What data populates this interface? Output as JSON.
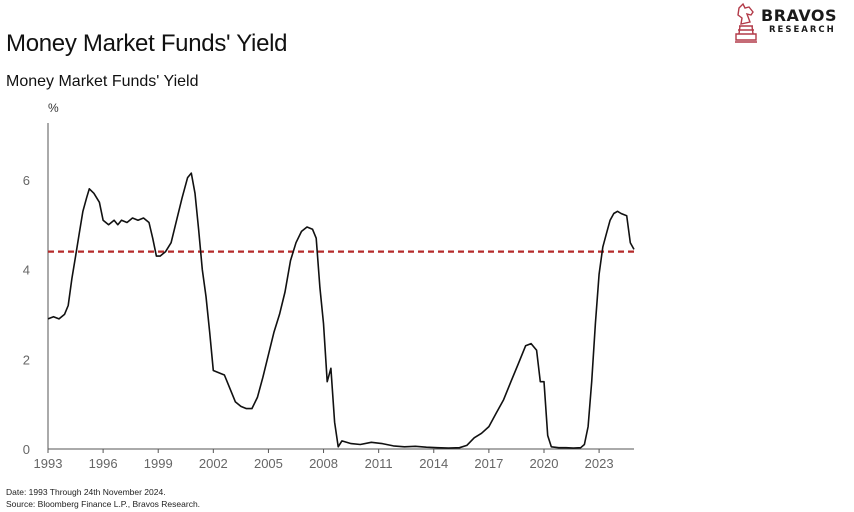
{
  "title": "Money Market Funds' Yield",
  "logo": {
    "name": "BRAVOS",
    "sub": "RESEARCH",
    "icon": "knight-chess-icon",
    "color": "#b23a48"
  },
  "footnotes": [
    "Date: 1993 Through 24th November 2024.",
    "Source: Bloomberg Finance L.P., Bravos Research."
  ],
  "colors": {
    "line": "#111111",
    "reference": "#b52a2a",
    "axis": "#555555",
    "tick_label": "#666666"
  },
  "chart_data": {
    "type": "line",
    "title": "Money Market Funds' Yield",
    "ylabel": "%",
    "xlabel": "",
    "xlim": [
      1993,
      2024.9
    ],
    "ylim": [
      0,
      7
    ],
    "xticks": [
      1993,
      1996,
      1999,
      2002,
      2005,
      2008,
      2011,
      2014,
      2017,
      2020,
      2023
    ],
    "yticks": [
      0,
      2,
      4,
      6
    ],
    "grid": false,
    "reference_line": {
      "y": 4.4,
      "style": "dashed"
    },
    "series": [
      {
        "points": [
          [
            1993.0,
            2.9
          ],
          [
            1993.3,
            2.95
          ],
          [
            1993.6,
            2.9
          ],
          [
            1993.9,
            3.0
          ],
          [
            1994.1,
            3.2
          ],
          [
            1994.3,
            3.8
          ],
          [
            1994.5,
            4.3
          ],
          [
            1994.7,
            4.8
          ],
          [
            1994.9,
            5.3
          ],
          [
            1995.1,
            5.6
          ],
          [
            1995.25,
            5.8
          ],
          [
            1995.5,
            5.7
          ],
          [
            1995.8,
            5.5
          ],
          [
            1996.0,
            5.1
          ],
          [
            1996.3,
            5.0
          ],
          [
            1996.6,
            5.1
          ],
          [
            1996.8,
            5.0
          ],
          [
            1997.0,
            5.1
          ],
          [
            1997.3,
            5.05
          ],
          [
            1997.6,
            5.15
          ],
          [
            1997.9,
            5.1
          ],
          [
            1998.2,
            5.15
          ],
          [
            1998.5,
            5.05
          ],
          [
            1998.7,
            4.7
          ],
          [
            1998.9,
            4.3
          ],
          [
            1999.1,
            4.3
          ],
          [
            1999.4,
            4.4
          ],
          [
            1999.7,
            4.6
          ],
          [
            2000.0,
            5.1
          ],
          [
            2000.3,
            5.6
          ],
          [
            2000.6,
            6.05
          ],
          [
            2000.8,
            6.15
          ],
          [
            2001.0,
            5.7
          ],
          [
            2001.2,
            4.9
          ],
          [
            2001.4,
            4.0
          ],
          [
            2001.6,
            3.4
          ],
          [
            2001.8,
            2.6
          ],
          [
            2002.0,
            1.75
          ],
          [
            2002.3,
            1.7
          ],
          [
            2002.6,
            1.65
          ],
          [
            2002.9,
            1.35
          ],
          [
            2003.2,
            1.05
          ],
          [
            2003.5,
            0.95
          ],
          [
            2003.8,
            0.9
          ],
          [
            2004.1,
            0.9
          ],
          [
            2004.4,
            1.15
          ],
          [
            2004.7,
            1.6
          ],
          [
            2005.0,
            2.1
          ],
          [
            2005.3,
            2.6
          ],
          [
            2005.6,
            3.0
          ],
          [
            2005.9,
            3.5
          ],
          [
            2006.2,
            4.2
          ],
          [
            2006.5,
            4.6
          ],
          [
            2006.8,
            4.85
          ],
          [
            2007.1,
            4.95
          ],
          [
            2007.4,
            4.9
          ],
          [
            2007.6,
            4.7
          ],
          [
            2007.8,
            3.6
          ],
          [
            2008.0,
            2.8
          ],
          [
            2008.2,
            1.5
          ],
          [
            2008.4,
            1.8
          ],
          [
            2008.6,
            0.6
          ],
          [
            2008.8,
            0.05
          ],
          [
            2009.0,
            0.18
          ],
          [
            2009.5,
            0.12
          ],
          [
            2010.0,
            0.1
          ],
          [
            2010.6,
            0.15
          ],
          [
            2011.2,
            0.12
          ],
          [
            2011.8,
            0.07
          ],
          [
            2012.4,
            0.05
          ],
          [
            2013.0,
            0.06
          ],
          [
            2013.6,
            0.04
          ],
          [
            2014.2,
            0.03
          ],
          [
            2014.8,
            0.02
          ],
          [
            2015.4,
            0.03
          ],
          [
            2015.8,
            0.08
          ],
          [
            2016.2,
            0.25
          ],
          [
            2016.6,
            0.35
          ],
          [
            2017.0,
            0.5
          ],
          [
            2017.4,
            0.8
          ],
          [
            2017.8,
            1.1
          ],
          [
            2018.2,
            1.5
          ],
          [
            2018.6,
            1.9
          ],
          [
            2019.0,
            2.3
          ],
          [
            2019.3,
            2.35
          ],
          [
            2019.6,
            2.2
          ],
          [
            2019.8,
            1.5
          ],
          [
            2020.0,
            1.5
          ],
          [
            2020.2,
            0.3
          ],
          [
            2020.4,
            0.05
          ],
          [
            2020.8,
            0.03
          ],
          [
            2021.2,
            0.03
          ],
          [
            2021.6,
            0.02
          ],
          [
            2022.0,
            0.03
          ],
          [
            2022.2,
            0.1
          ],
          [
            2022.4,
            0.5
          ],
          [
            2022.6,
            1.5
          ],
          [
            2022.8,
            2.8
          ],
          [
            2023.0,
            3.9
          ],
          [
            2023.2,
            4.5
          ],
          [
            2023.4,
            4.8
          ],
          [
            2023.6,
            5.1
          ],
          [
            2023.8,
            5.25
          ],
          [
            2024.0,
            5.3
          ],
          [
            2024.2,
            5.25
          ],
          [
            2024.5,
            5.2
          ],
          [
            2024.7,
            4.6
          ],
          [
            2024.9,
            4.45
          ]
        ]
      }
    ]
  }
}
